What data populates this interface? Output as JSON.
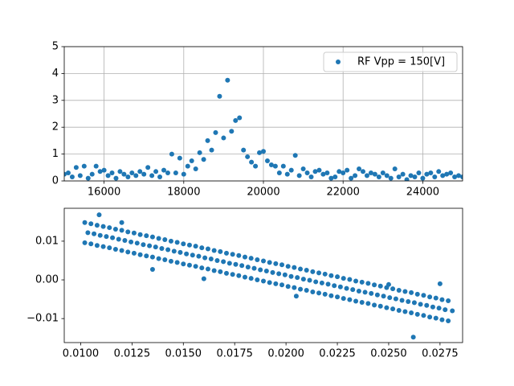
{
  "chart_data": [
    {
      "type": "scatter",
      "xlim": [
        15000,
        25000
      ],
      "ylim": [
        0,
        5
      ],
      "xticks": [
        16000,
        18000,
        20000,
        22000,
        24000
      ],
      "yticks": [
        0,
        1,
        2,
        3,
        4,
        5
      ],
      "grid": true,
      "legend": "upper right",
      "x": [
        15000,
        15100,
        15200,
        15300,
        15400,
        15500,
        15600,
        15700,
        15800,
        15900,
        16000,
        16100,
        16200,
        16300,
        16400,
        16500,
        16600,
        16700,
        16800,
        16900,
        17000,
        17100,
        17200,
        17300,
        17400,
        17500,
        17600,
        17700,
        17800,
        17900,
        18000,
        18100,
        18200,
        18300,
        18400,
        18500,
        18600,
        18700,
        18800,
        18900,
        19000,
        19100,
        19200,
        19300,
        19400,
        19500,
        19600,
        19700,
        19800,
        19900,
        20000,
        20100,
        20200,
        20300,
        20400,
        20500,
        20600,
        20700,
        20800,
        20900,
        21000,
        21100,
        21200,
        21300,
        21400,
        21500,
        21600,
        21700,
        21800,
        21900,
        22000,
        22100,
        22200,
        22300,
        22400,
        22500,
        22600,
        22700,
        22800,
        22900,
        23000,
        23100,
        23200,
        23300,
        23400,
        23500,
        23600,
        23700,
        23800,
        23900,
        24000,
        24100,
        24200,
        24300,
        24400,
        24500,
        24600,
        24700,
        24800,
        24900,
        25000
      ],
      "series": [
        {
          "name": "RF Vpp = 150[V]",
          "color": "#1f77b4",
          "values": [
            0.25,
            0.3,
            0.15,
            0.5,
            0.2,
            0.55,
            0.1,
            0.25,
            0.55,
            0.35,
            0.4,
            0.2,
            0.3,
            0.1,
            0.35,
            0.25,
            0.15,
            0.3,
            0.2,
            0.35,
            0.25,
            0.5,
            0.2,
            0.35,
            0.15,
            0.4,
            0.3,
            1.0,
            0.3,
            0.85,
            0.25,
            0.55,
            0.75,
            0.45,
            1.05,
            0.8,
            1.5,
            1.15,
            1.8,
            3.15,
            1.6,
            3.75,
            1.85,
            2.25,
            2.35,
            1.15,
            0.9,
            0.7,
            0.55,
            1.05,
            1.1,
            0.75,
            0.6,
            0.55,
            0.3,
            0.55,
            0.25,
            0.4,
            0.95,
            0.2,
            0.45,
            0.3,
            0.15,
            0.35,
            0.4,
            0.25,
            0.3,
            0.1,
            0.15,
            0.35,
            0.3,
            0.4,
            0.1,
            0.2,
            0.45,
            0.35,
            0.2,
            0.3,
            0.25,
            0.15,
            0.3,
            0.2,
            0.1,
            0.45,
            0.15,
            0.25,
            0.05,
            0.2,
            0.15,
            0.3,
            0.1,
            0.25,
            0.3,
            0.15,
            0.35,
            0.2,
            0.25,
            0.3,
            0.15,
            0.2,
            0.15
          ]
        }
      ]
    },
    {
      "type": "scatter",
      "xlim": [
        0.0092,
        0.0286
      ],
      "ylim": [
        -0.0162,
        0.0185
      ],
      "xticks": [
        {
          "value": 0.01,
          "label": "0.0100"
        },
        {
          "value": 0.0125,
          "label": "0.0125"
        },
        {
          "value": 0.015,
          "label": "0.0150"
        },
        {
          "value": 0.0175,
          "label": "0.0175"
        },
        {
          "value": 0.02,
          "label": "0.0200"
        },
        {
          "value": 0.0225,
          "label": "0.0225"
        },
        {
          "value": 0.025,
          "label": "0.0250"
        },
        {
          "value": 0.0275,
          "label": "0.0275"
        }
      ],
      "yticks": [
        {
          "value": -0.01,
          "label": "−0.01"
        },
        {
          "value": 0,
          "label": "0.00"
        },
        0.01
      ],
      "grid": false,
      "x": [
        0.0102,
        0.01035,
        0.0102,
        0.0105,
        0.01065,
        0.0105,
        0.0108,
        0.01095,
        0.0108,
        0.0111,
        0.01125,
        0.0111,
        0.0114,
        0.01155,
        0.0114,
        0.0117,
        0.01185,
        0.0117,
        0.012,
        0.01215,
        0.012,
        0.0123,
        0.01245,
        0.0123,
        0.0126,
        0.01275,
        0.0126,
        0.0129,
        0.01305,
        0.0129,
        0.0132,
        0.01335,
        0.0132,
        0.0135,
        0.01365,
        0.0135,
        0.0138,
        0.01395,
        0.0138,
        0.0141,
        0.01425,
        0.0141,
        0.0144,
        0.01455,
        0.0144,
        0.0147,
        0.01485,
        0.0147,
        0.015,
        0.01515,
        0.015,
        0.0153,
        0.01545,
        0.0153,
        0.0156,
        0.01575,
        0.0156,
        0.0159,
        0.01605,
        0.0159,
        0.0162,
        0.01635,
        0.0162,
        0.0165,
        0.01665,
        0.0165,
        0.0168,
        0.01695,
        0.0168,
        0.0171,
        0.01725,
        0.0171,
        0.0174,
        0.01755,
        0.0174,
        0.0177,
        0.01785,
        0.0177,
        0.018,
        0.01815,
        0.018,
        0.0183,
        0.01845,
        0.0183,
        0.0186,
        0.01875,
        0.0186,
        0.0189,
        0.01905,
        0.0189,
        0.0192,
        0.01935,
        0.0192,
        0.0195,
        0.01965,
        0.0195,
        0.0198,
        0.01995,
        0.0198,
        0.0201,
        0.02025,
        0.0201,
        0.0204,
        0.02055,
        0.0204,
        0.0207,
        0.02085,
        0.0207,
        0.021,
        0.02115,
        0.021,
        0.0213,
        0.02145,
        0.0213,
        0.0216,
        0.02175,
        0.0216,
        0.0219,
        0.02205,
        0.0219,
        0.0222,
        0.02235,
        0.0222,
        0.0225,
        0.02265,
        0.0225,
        0.0228,
        0.02295,
        0.0228,
        0.0231,
        0.02325,
        0.0231,
        0.0234,
        0.02355,
        0.0234,
        0.0237,
        0.02385,
        0.0237,
        0.024,
        0.02415,
        0.024,
        0.0243,
        0.02445,
        0.0243,
        0.0246,
        0.02475,
        0.0246,
        0.0249,
        0.02505,
        0.0249,
        0.0252,
        0.02535,
        0.0252,
        0.0255,
        0.02565,
        0.0255,
        0.0258,
        0.02595,
        0.0258,
        0.0261,
        0.02625,
        0.0261,
        0.0264,
        0.02655,
        0.0264,
        0.0267,
        0.02685,
        0.0267,
        0.027,
        0.02715,
        0.027,
        0.0273,
        0.02745,
        0.0273,
        0.0276,
        0.02775,
        0.0276,
        0.0279,
        0.0281,
        0.0279,
        0.0109,
        0.0135,
        0.016,
        0.0205,
        0.025,
        0.0262,
        0.0275,
        0.012
      ],
      "series": [
        {
          "color": "#1f77b4",
          "values": [
            0.0148,
            0.0122,
            0.0096,
            0.0145,
            0.0119,
            0.0093,
            0.0141,
            0.0115,
            0.0089,
            0.0138,
            0.0112,
            0.0086,
            0.0135,
            0.0109,
            0.0083,
            0.0131,
            0.0105,
            0.0079,
            0.0128,
            0.0102,
            0.0076,
            0.0124,
            0.0098,
            0.0072,
            0.0121,
            0.0095,
            0.0069,
            0.0117,
            0.0091,
            0.0065,
            0.0114,
            0.0088,
            0.0062,
            0.0111,
            0.0085,
            0.0059,
            0.0107,
            0.0081,
            0.0055,
            0.0104,
            0.0078,
            0.0052,
            0.01,
            0.0074,
            0.0048,
            0.0097,
            0.0071,
            0.0045,
            0.0093,
            0.0067,
            0.0041,
            0.009,
            0.0064,
            0.0038,
            0.0087,
            0.0061,
            0.0035,
            0.0083,
            0.0057,
            0.0031,
            0.008,
            0.0054,
            0.0028,
            0.0076,
            0.005,
            0.0024,
            0.0073,
            0.0047,
            0.0021,
            0.0069,
            0.0043,
            0.0017,
            0.0066,
            0.004,
            0.0014,
            0.0063,
            0.0037,
            0.0011,
            0.0059,
            0.0033,
            0.0007,
            0.0056,
            0.003,
            0.0004,
            0.0052,
            0.0026,
            0.0,
            0.0049,
            0.0023,
            -0.0003,
            0.0045,
            0.0019,
            -0.0007,
            0.0042,
            0.0016,
            -0.001,
            0.0039,
            0.0013,
            -0.0013,
            0.0035,
            0.0009,
            -0.0017,
            0.0032,
            0.0006,
            -0.002,
            0.0028,
            0.0002,
            -0.0024,
            0.0025,
            -0.0001,
            -0.0027,
            0.0021,
            -0.0005,
            -0.0031,
            0.0018,
            -0.0008,
            -0.0034,
            0.0015,
            -0.0011,
            -0.0037,
            0.0011,
            -0.0015,
            -0.0041,
            0.0008,
            -0.0018,
            -0.0044,
            0.0004,
            -0.0022,
            -0.0048,
            0.0001,
            -0.0025,
            -0.0051,
            -0.0003,
            -0.0029,
            -0.0055,
            -0.0006,
            -0.0032,
            -0.0058,
            -0.0009,
            -0.0035,
            -0.0061,
            -0.0013,
            -0.0039,
            -0.0065,
            -0.0016,
            -0.0042,
            -0.0068,
            -0.002,
            -0.0046,
            -0.0072,
            -0.0023,
            -0.0049,
            -0.0075,
            -0.0027,
            -0.0053,
            -0.0079,
            -0.003,
            -0.0056,
            -0.0082,
            -0.0033,
            -0.0059,
            -0.0085,
            -0.0037,
            -0.0063,
            -0.0089,
            -0.004,
            -0.0066,
            -0.0092,
            -0.0044,
            -0.007,
            -0.0096,
            -0.0047,
            -0.0073,
            -0.0099,
            -0.0051,
            -0.0077,
            -0.0103,
            -0.0054,
            -0.008,
            -0.0106,
            0.0168,
            0.0027,
            0.0003,
            -0.0042,
            -0.0012,
            -0.0148,
            -0.001,
            0.0148
          ]
        }
      ]
    }
  ]
}
